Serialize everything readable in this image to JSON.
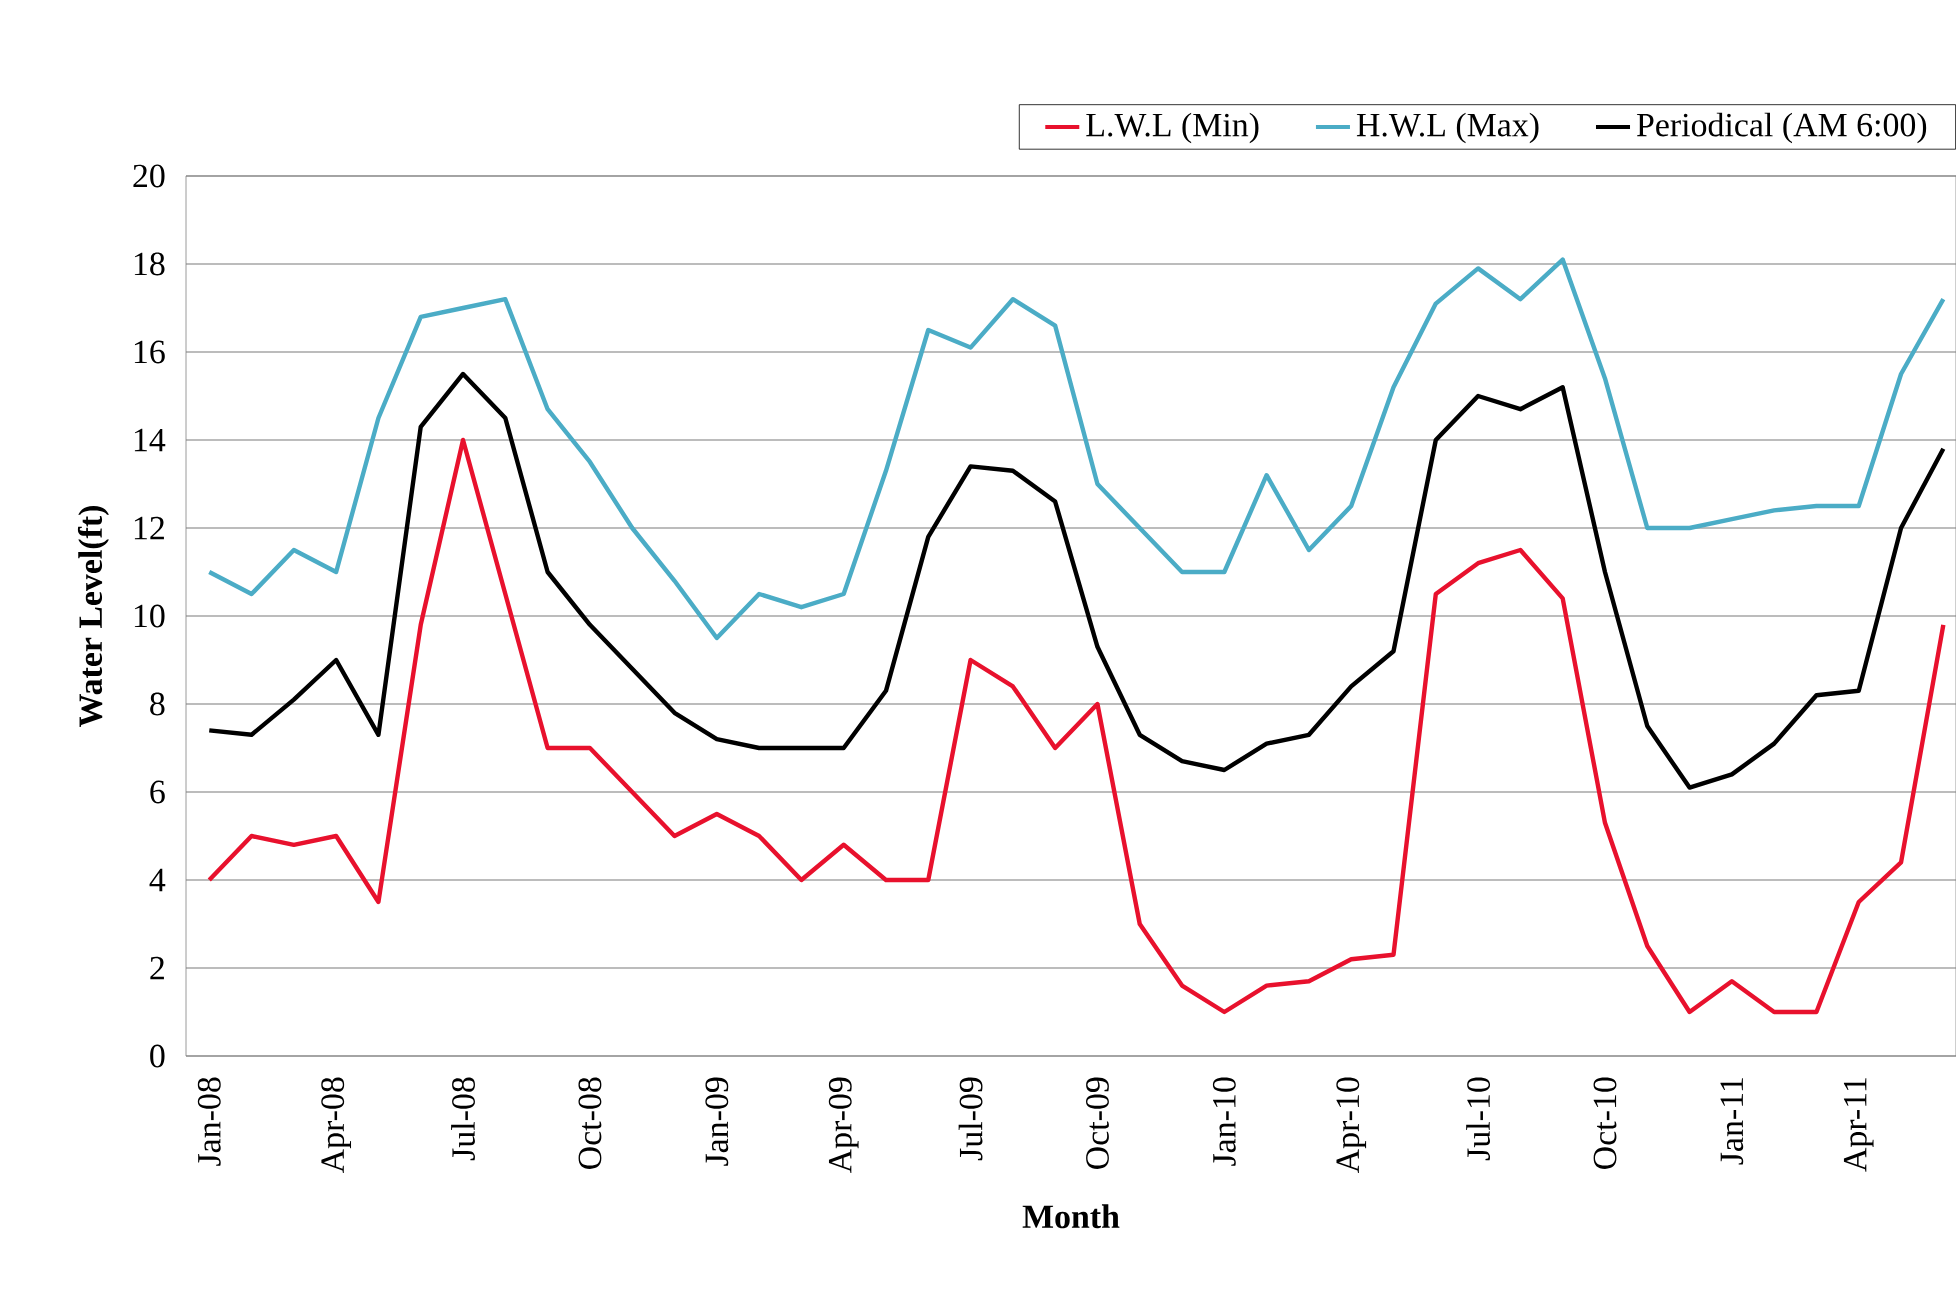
{
  "chart_data": {
    "type": "line",
    "xlabel": "Month",
    "ylabel": "Water Level(ft)",
    "categories": [
      "Jan-08",
      null,
      null,
      "Apr-08",
      null,
      null,
      "Jul-08",
      null,
      null,
      "Oct-08",
      null,
      null,
      "Jan-09",
      null,
      null,
      "Apr-09",
      null,
      null,
      "Jul-09",
      null,
      null,
      "Oct-09",
      null,
      null,
      "Jan-10",
      null,
      null,
      "Apr-10",
      null,
      null,
      "Jul-10",
      null,
      null,
      "Oct-10",
      null,
      null,
      "Jan-11",
      null,
      null,
      "Apr-11",
      null,
      null
    ],
    "series": [
      {
        "name": "L.W.L (Min)",
        "color": "#e8112d",
        "values": [
          4,
          5,
          4.8,
          5,
          3.5,
          9.8,
          14,
          10.5,
          7,
          7,
          6,
          5,
          5.5,
          5,
          4,
          4.8,
          4,
          4,
          9,
          8.4,
          7,
          8,
          3,
          1.6,
          1,
          1.6,
          1.7,
          2.2,
          2.3,
          10.5,
          11.2,
          11.5,
          10.4,
          5.3,
          2.5,
          1,
          1.7,
          1,
          1,
          3.5,
          4.4,
          9.8
        ]
      },
      {
        "name": "H.W.L (Max)",
        "color": "#4bacc6",
        "values": [
          11,
          10.5,
          11.5,
          11,
          14.5,
          16.8,
          17,
          17.2,
          14.7,
          13.5,
          12,
          10.8,
          9.5,
          10.5,
          10.2,
          10.5,
          13.3,
          16.5,
          16.1,
          17.2,
          16.6,
          13,
          12,
          11,
          11,
          13.2,
          11.5,
          12.5,
          15.2,
          17.1,
          17.9,
          17.2,
          18.1,
          15.4,
          12,
          12,
          12.2,
          12.4,
          12.5,
          12.5,
          15.5,
          17.2
        ]
      },
      {
        "name": "Periodical (AM 6:00)",
        "color": "#000000",
        "values": [
          7.4,
          7.3,
          8.1,
          9,
          7.3,
          14.3,
          15.5,
          14.5,
          11,
          9.8,
          8.8,
          7.8,
          7.2,
          7,
          7,
          7,
          8.3,
          11.8,
          13.4,
          13.3,
          12.6,
          9.3,
          7.3,
          6.7,
          6.5,
          7.1,
          7.3,
          8.4,
          9.2,
          14,
          15,
          14.7,
          15.2,
          11,
          7.5,
          6.1,
          6.4,
          7.1,
          8.2,
          8.3,
          12,
          13.8
        ]
      }
    ],
    "ylim": [
      0,
      20
    ],
    "yticks": [
      0,
      2,
      4,
      6,
      8,
      10,
      12,
      14,
      16,
      18,
      20
    ],
    "grid": "y",
    "legend": "top",
    "line_style": "solid",
    "marker": "none"
  }
}
